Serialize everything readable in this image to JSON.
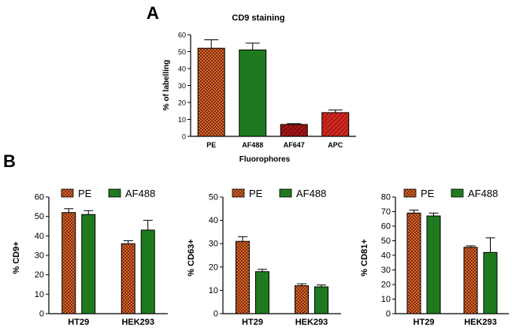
{
  "panel_labels": {
    "a": "A",
    "b": "B"
  },
  "colors": {
    "pe_fill": "#d9662a",
    "pe_check": "#7a2e10",
    "af488_fill": "#1f7a1f",
    "af647_fill": "#a31515",
    "apc_fill": "#c8231e",
    "hatch": "#5a0a0a",
    "axis": "#000000"
  },
  "chart_data": [
    {
      "id": "A",
      "type": "bar",
      "title": "CD9 staining",
      "xlabel": "Fluorophores",
      "ylabel": "% of labelling",
      "categories": [
        "PE",
        "AF488",
        "AF647",
        "APC"
      ],
      "values": [
        52,
        51,
        7,
        14
      ],
      "errors": [
        5,
        4,
        0.5,
        1.5
      ],
      "styles": [
        "checker-orange",
        "solid-green",
        "hatch-darkred",
        "hatch-red"
      ],
      "ylim": [
        0,
        60
      ],
      "yticks": [
        "0",
        "10",
        "20",
        "30",
        "40",
        "50",
        "60"
      ]
    },
    {
      "id": "B1",
      "type": "bar",
      "ylabel": "% CD9+",
      "categories": [
        "HT29",
        "HEK293"
      ],
      "series": [
        {
          "name": "PE",
          "values": [
            52,
            36
          ],
          "errors": [
            2,
            1.5
          ]
        },
        {
          "name": "AF488",
          "values": [
            51,
            43
          ],
          "errors": [
            2,
            5
          ]
        }
      ],
      "ylim": [
        0,
        60
      ],
      "yticks": [
        "0",
        "10",
        "20",
        "30",
        "40",
        "50",
        "60"
      ],
      "legend": "top"
    },
    {
      "id": "B2",
      "type": "bar",
      "ylabel": "% CD63+",
      "categories": [
        "HT29",
        "HEK293"
      ],
      "series": [
        {
          "name": "PE",
          "values": [
            31,
            12
          ],
          "errors": [
            2,
            0.8
          ]
        },
        {
          "name": "AF488",
          "values": [
            18,
            11.5
          ],
          "errors": [
            1,
            0.8
          ]
        }
      ],
      "ylim": [
        0,
        50
      ],
      "yticks": [
        "0",
        "10",
        "20",
        "30",
        "40",
        "50"
      ],
      "legend": "top"
    },
    {
      "id": "B3",
      "type": "bar",
      "ylabel": "% CD81+",
      "categories": [
        "HT29",
        "HEK293"
      ],
      "series": [
        {
          "name": "PE",
          "values": [
            69,
            45.5
          ],
          "errors": [
            2,
            1
          ]
        },
        {
          "name": "AF488",
          "values": [
            67,
            42
          ],
          "errors": [
            2,
            10
          ]
        }
      ],
      "ylim": [
        0,
        80
      ],
      "yticks": [
        "0",
        "10",
        "20",
        "30",
        "40",
        "50",
        "60",
        "70",
        "80"
      ],
      "legend": "top"
    }
  ]
}
